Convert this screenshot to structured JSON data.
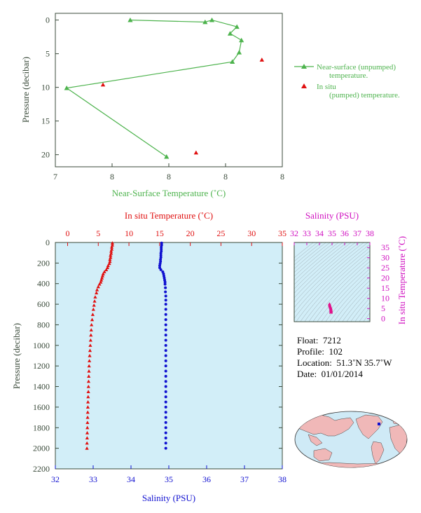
{
  "chart_data": [
    {
      "id": "near_surface",
      "type": "line",
      "xlabel": "Near-Surface Temperature (˚C)",
      "ylabel": "Pressure (decibar)",
      "x_ticks": [
        "7",
        "8",
        "8",
        "8",
        "8"
      ],
      "y_ticks": [
        "0",
        "5",
        "10",
        "15",
        "20"
      ],
      "xlim": [
        7.2,
        8.2
      ],
      "ylim": [
        21.8,
        -1.0
      ],
      "series": [
        {
          "name": "Near-surface (unpumped) temperature.",
          "color": "#4db34d",
          "marker": "triangle",
          "line": true,
          "points": [
            {
              "x": 7.53,
              "y": 0.0
            },
            {
              "x": 7.86,
              "y": 0.3
            },
            {
              "x": 7.89,
              "y": 0.0
            },
            {
              "x": 8.0,
              "y": 1.0
            },
            {
              "x": 7.97,
              "y": 2.0
            },
            {
              "x": 8.02,
              "y": 3.0
            },
            {
              "x": 8.01,
              "y": 4.8
            },
            {
              "x": 7.98,
              "y": 6.2
            },
            {
              "x": 7.25,
              "y": 10.1
            },
            {
              "x": 7.69,
              "y": 20.3
            }
          ]
        },
        {
          "name": "In situ (pumped) temperature.",
          "color": "#e01010",
          "marker": "triangle",
          "line": false,
          "points": [
            {
              "x": 8.11,
              "y": 5.9
            },
            {
              "x": 7.41,
              "y": 9.6
            },
            {
              "x": 7.82,
              "y": 19.7
            }
          ]
        }
      ]
    },
    {
      "id": "profile",
      "type": "scatter",
      "title_top": "In situ Temperature (˚C)",
      "xlabel_bottom": "Salinity (PSU)",
      "ylabel": "Pressure (decibar)",
      "top_ticks": [
        "0",
        "5",
        "10",
        "15",
        "20",
        "25",
        "30",
        "35"
      ],
      "bottom_ticks": [
        "32",
        "33",
        "34",
        "35",
        "36",
        "37",
        "38"
      ],
      "y_ticks": [
        "0",
        "200",
        "400",
        "600",
        "800",
        "1000",
        "1200",
        "1400",
        "1600",
        "1800",
        "2000",
        "2200"
      ],
      "temp_lim": [
        -2,
        35
      ],
      "sal_lim": [
        32,
        38
      ],
      "ylim": [
        0,
        2200
      ],
      "background": "#d2eef8",
      "temperature": {
        "color": "#e01010",
        "points": [
          {
            "p": 5,
            "v": 7.3
          },
          {
            "p": 25,
            "v": 7.3
          },
          {
            "p": 45,
            "v": 7.2
          },
          {
            "p": 65,
            "v": 7.2
          },
          {
            "p": 85,
            "v": 7.1
          },
          {
            "p": 105,
            "v": 7.1
          },
          {
            "p": 125,
            "v": 7.0
          },
          {
            "p": 145,
            "v": 7.0
          },
          {
            "p": 165,
            "v": 6.9
          },
          {
            "p": 185,
            "v": 6.9
          },
          {
            "p": 205,
            "v": 6.8
          },
          {
            "p": 225,
            "v": 6.6
          },
          {
            "p": 245,
            "v": 6.5
          },
          {
            "p": 265,
            "v": 6.3
          },
          {
            "p": 285,
            "v": 6.0
          },
          {
            "p": 305,
            "v": 5.8
          },
          {
            "p": 325,
            "v": 5.7
          },
          {
            "p": 345,
            "v": 5.6
          },
          {
            "p": 365,
            "v": 5.5
          },
          {
            "p": 385,
            "v": 5.4
          },
          {
            "p": 405,
            "v": 5.2
          },
          {
            "p": 430,
            "v": 5.0
          },
          {
            "p": 460,
            "v": 4.8
          },
          {
            "p": 490,
            "v": 4.7
          },
          {
            "p": 530,
            "v": 4.5
          },
          {
            "p": 570,
            "v": 4.4
          },
          {
            "p": 610,
            "v": 4.3
          },
          {
            "p": 650,
            "v": 4.2
          },
          {
            "p": 700,
            "v": 4.1
          },
          {
            "p": 750,
            "v": 4.0
          },
          {
            "p": 800,
            "v": 3.9
          },
          {
            "p": 850,
            "v": 3.85
          },
          {
            "p": 900,
            "v": 3.8
          },
          {
            "p": 950,
            "v": 3.75
          },
          {
            "p": 1000,
            "v": 3.7
          },
          {
            "p": 1050,
            "v": 3.65
          },
          {
            "p": 1100,
            "v": 3.6
          },
          {
            "p": 1150,
            "v": 3.55
          },
          {
            "p": 1200,
            "v": 3.5
          },
          {
            "p": 1250,
            "v": 3.48
          },
          {
            "p": 1300,
            "v": 3.45
          },
          {
            "p": 1350,
            "v": 3.42
          },
          {
            "p": 1400,
            "v": 3.4
          },
          {
            "p": 1450,
            "v": 3.38
          },
          {
            "p": 1500,
            "v": 3.35
          },
          {
            "p": 1550,
            "v": 3.32
          },
          {
            "p": 1600,
            "v": 3.3
          },
          {
            "p": 1650,
            "v": 3.28
          },
          {
            "p": 1700,
            "v": 3.26
          },
          {
            "p": 1750,
            "v": 3.24
          },
          {
            "p": 1800,
            "v": 3.22
          },
          {
            "p": 1850,
            "v": 3.2
          },
          {
            "p": 1900,
            "v": 3.18
          },
          {
            "p": 1950,
            "v": 3.16
          },
          {
            "p": 2000,
            "v": 3.15
          }
        ]
      },
      "salinity": {
        "color": "#1010d0",
        "points": [
          {
            "p": 5,
            "v": 34.81
          },
          {
            "p": 25,
            "v": 34.81
          },
          {
            "p": 45,
            "v": 34.8
          },
          {
            "p": 65,
            "v": 34.8
          },
          {
            "p": 85,
            "v": 34.8
          },
          {
            "p": 105,
            "v": 34.79
          },
          {
            "p": 125,
            "v": 34.79
          },
          {
            "p": 145,
            "v": 34.79
          },
          {
            "p": 165,
            "v": 34.78
          },
          {
            "p": 185,
            "v": 34.78
          },
          {
            "p": 205,
            "v": 34.77
          },
          {
            "p": 225,
            "v": 34.76
          },
          {
            "p": 245,
            "v": 34.76
          },
          {
            "p": 265,
            "v": 34.79
          },
          {
            "p": 285,
            "v": 34.84
          },
          {
            "p": 305,
            "v": 34.86
          },
          {
            "p": 325,
            "v": 34.87
          },
          {
            "p": 345,
            "v": 34.88
          },
          {
            "p": 365,
            "v": 34.89
          },
          {
            "p": 385,
            "v": 34.9
          },
          {
            "p": 405,
            "v": 34.9
          },
          {
            "p": 440,
            "v": 34.91
          },
          {
            "p": 480,
            "v": 34.91
          },
          {
            "p": 520,
            "v": 34.92
          },
          {
            "p": 560,
            "v": 34.92
          },
          {
            "p": 600,
            "v": 34.92
          },
          {
            "p": 650,
            "v": 34.92
          },
          {
            "p": 700,
            "v": 34.92
          },
          {
            "p": 750,
            "v": 34.92
          },
          {
            "p": 800,
            "v": 34.92
          },
          {
            "p": 850,
            "v": 34.92
          },
          {
            "p": 900,
            "v": 34.92
          },
          {
            "p": 950,
            "v": 34.92
          },
          {
            "p": 1000,
            "v": 34.92
          },
          {
            "p": 1050,
            "v": 34.92
          },
          {
            "p": 1100,
            "v": 34.92
          },
          {
            "p": 1150,
            "v": 34.92
          },
          {
            "p": 1200,
            "v": 34.92
          },
          {
            "p": 1250,
            "v": 34.92
          },
          {
            "p": 1300,
            "v": 34.92
          },
          {
            "p": 1350,
            "v": 34.92
          },
          {
            "p": 1400,
            "v": 34.92
          },
          {
            "p": 1450,
            "v": 34.92
          },
          {
            "p": 1500,
            "v": 34.92
          },
          {
            "p": 1550,
            "v": 34.92
          },
          {
            "p": 1600,
            "v": 34.92
          },
          {
            "p": 1650,
            "v": 34.92
          },
          {
            "p": 1700,
            "v": 34.92
          },
          {
            "p": 1750,
            "v": 34.92
          },
          {
            "p": 1800,
            "v": 34.92
          },
          {
            "p": 1850,
            "v": 34.92
          },
          {
            "p": 1900,
            "v": 34.92
          },
          {
            "p": 1950,
            "v": 34.92
          },
          {
            "p": 2000,
            "v": 34.92
          }
        ]
      }
    },
    {
      "id": "ts_diagram",
      "type": "scatter",
      "title_top": "Salinity (PSU)",
      "ylabel_right": "In situ Temperature (˚C)",
      "x_ticks": [
        "32",
        "33",
        "34",
        "35",
        "36",
        "37",
        "38"
      ],
      "y_ticks": [
        "0",
        "5",
        "10",
        "15",
        "20",
        "25",
        "30",
        "35"
      ],
      "xlim": [
        32,
        38
      ],
      "ylim": [
        -1.5,
        37.5
      ],
      "color": "#e0108a",
      "points": [
        {
          "s": 34.8,
          "t": 7.2
        },
        {
          "s": 34.82,
          "t": 6.5
        },
        {
          "s": 34.85,
          "t": 6.0
        },
        {
          "s": 34.88,
          "t": 5.5
        },
        {
          "s": 34.9,
          "t": 5.0
        },
        {
          "s": 34.91,
          "t": 4.5
        },
        {
          "s": 34.92,
          "t": 4.0
        },
        {
          "s": 34.92,
          "t": 3.5
        },
        {
          "s": 34.92,
          "t": 3.2
        }
      ]
    }
  ],
  "float_info": {
    "float_label": "Float:",
    "float_value": "7212",
    "profile_label": "Profile:",
    "profile_value": "102",
    "location_label": "Location:",
    "location_value": "51.3˚N  35.7˚W",
    "date_label": "Date:",
    "date_value": "01/01/2014"
  },
  "map": {
    "ocean_color": "#cfeaf6",
    "land_color": "#f0b8b8",
    "marker_color": "#1010d0"
  },
  "colors": {
    "green": "#4db34d",
    "red": "#e01010",
    "blue": "#1010d0",
    "magenta": "#d010c0",
    "axis_dark": "#3a4a3a"
  }
}
